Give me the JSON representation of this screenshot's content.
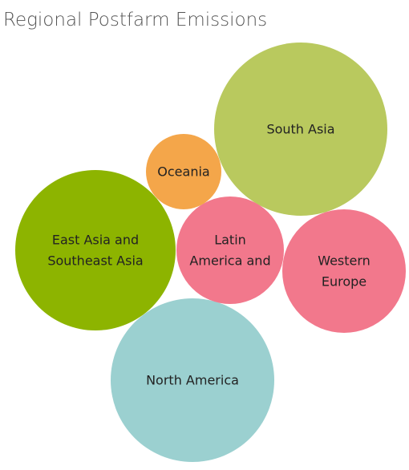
{
  "chart_data": {
    "type": "bubble",
    "title": "Regional Postfarm Emissions",
    "series": [
      {
        "label": "South Asia",
        "lines": [
          "South Asia"
        ],
        "color": "#b9c95e"
      },
      {
        "label": "East Asia and Southeast Asia",
        "lines": [
          "East Asia and",
          "Southeast Asia"
        ],
        "color": "#8db400"
      },
      {
        "label": "North America",
        "lines": [
          "North America"
        ],
        "color": "#9bd0d0"
      },
      {
        "label": "Western Europe",
        "lines": [
          "Western",
          "Europe"
        ],
        "color": "#f2788c"
      },
      {
        "label": "Latin America and",
        "lines": [
          "Latin",
          "America and"
        ],
        "color": "#f2788c"
      },
      {
        "label": "Oceania",
        "lines": [
          "Oceania"
        ],
        "color": "#f4a64a"
      }
    ]
  }
}
